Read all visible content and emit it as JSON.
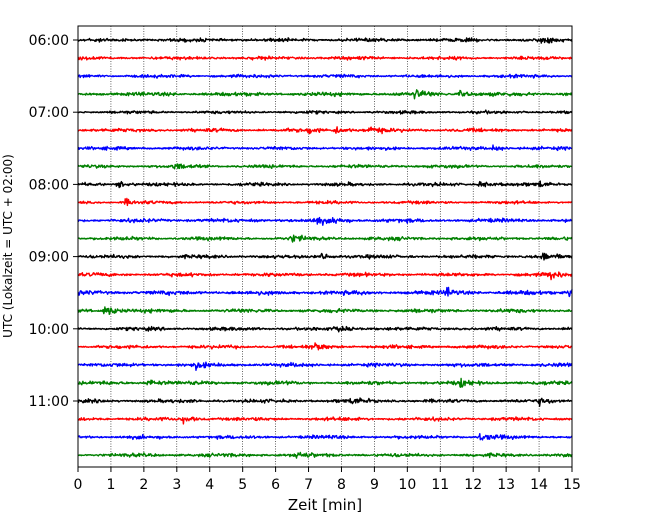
{
  "chart_data": {
    "type": "line",
    "subtype": "helicorder",
    "title": "",
    "xlabel": "Zeit  [min]",
    "ylabel": "UTC (Lokalzeit = UTC + 02:00)",
    "xlim": [
      0,
      15
    ],
    "x_ticks": [
      0,
      1,
      2,
      3,
      4,
      5,
      6,
      7,
      8,
      9,
      10,
      11,
      12,
      13,
      14,
      15
    ],
    "x_gridlines": "dotted vertical at each minute",
    "row_interval_minutes": 15,
    "row_start_time": "06:00",
    "y_tick_labels": [
      "06:00",
      "07:00",
      "08:00",
      "09:00",
      "10:00",
      "11:00"
    ],
    "y_tick_row_indices": [
      0,
      4,
      8,
      12,
      16,
      20
    ],
    "color_cycle": [
      "#000000",
      "#ff0000",
      "#0000ff",
      "#008000"
    ],
    "rows": [
      {
        "start": "06:00",
        "amplitude": 0.3,
        "events": [
          {
            "t": 14.0,
            "amp": 0.45
          }
        ]
      },
      {
        "start": "06:15",
        "amplitude": 0.28,
        "events": []
      },
      {
        "start": "06:30",
        "amplitude": 0.28,
        "events": []
      },
      {
        "start": "06:45",
        "amplitude": 0.33,
        "events": [
          {
            "t": 10.2,
            "amp": 0.7
          },
          {
            "t": 11.6,
            "amp": 0.5
          }
        ]
      },
      {
        "start": "07:00",
        "amplitude": 0.26,
        "events": []
      },
      {
        "start": "07:15",
        "amplitude": 0.3,
        "events": [
          {
            "t": 7.0,
            "amp": 0.5
          },
          {
            "t": 7.8,
            "amp": 0.6
          },
          {
            "t": 8.8,
            "amp": 0.55
          }
        ]
      },
      {
        "start": "07:30",
        "amplitude": 0.28,
        "events": [
          {
            "t": 12.6,
            "amp": 0.45
          }
        ]
      },
      {
        "start": "07:45",
        "amplitude": 0.28,
        "events": [
          {
            "t": 2.9,
            "amp": 0.4
          }
        ]
      },
      {
        "start": "08:00",
        "amplitude": 0.28,
        "events": [
          {
            "t": 1.2,
            "amp": 0.55
          },
          {
            "t": 12.2,
            "amp": 0.5
          },
          {
            "t": 14.0,
            "amp": 0.45
          }
        ]
      },
      {
        "start": "08:15",
        "amplitude": 0.26,
        "events": [
          {
            "t": 1.4,
            "amp": 0.5
          }
        ]
      },
      {
        "start": "08:30",
        "amplitude": 0.32,
        "events": [
          {
            "t": 7.2,
            "amp": 0.6
          },
          {
            "t": 7.8,
            "amp": 0.55
          }
        ]
      },
      {
        "start": "08:45",
        "amplitude": 0.3,
        "events": [
          {
            "t": 6.5,
            "amp": 0.5
          }
        ]
      },
      {
        "start": "09:00",
        "amplitude": 0.3,
        "events": [
          {
            "t": 7.4,
            "amp": 0.6
          },
          {
            "t": 14.1,
            "amp": 0.55
          }
        ]
      },
      {
        "start": "09:15",
        "amplitude": 0.3,
        "events": [
          {
            "t": 14.3,
            "amp": 0.8
          }
        ]
      },
      {
        "start": "09:30",
        "amplitude": 0.36,
        "events": [
          {
            "t": 11.2,
            "amp": 0.6
          },
          {
            "t": 14.9,
            "amp": 0.85
          }
        ]
      },
      {
        "start": "09:45",
        "amplitude": 0.32,
        "events": [
          {
            "t": 0.8,
            "amp": 1.1
          }
        ]
      },
      {
        "start": "10:00",
        "amplitude": 0.3,
        "events": [
          {
            "t": 7.9,
            "amp": 0.5
          }
        ]
      },
      {
        "start": "10:15",
        "amplitude": 0.3,
        "events": [
          {
            "t": 7.2,
            "amp": 0.5
          }
        ]
      },
      {
        "start": "10:30",
        "amplitude": 0.32,
        "events": [
          {
            "t": 3.5,
            "amp": 0.5
          }
        ]
      },
      {
        "start": "10:45",
        "amplitude": 0.32,
        "events": [
          {
            "t": 2.1,
            "amp": 0.6
          },
          {
            "t": 11.6,
            "amp": 0.55
          }
        ]
      },
      {
        "start": "11:00",
        "amplitude": 0.3,
        "events": [
          {
            "t": 8.3,
            "amp": 0.55
          },
          {
            "t": 14.0,
            "amp": 0.5
          }
        ]
      },
      {
        "start": "11:15",
        "amplitude": 0.3,
        "events": [
          {
            "t": 3.2,
            "amp": 0.55
          }
        ]
      },
      {
        "start": "11:30",
        "amplitude": 0.3,
        "events": [
          {
            "t": 12.2,
            "amp": 0.5
          }
        ]
      },
      {
        "start": "11:45",
        "amplitude": 0.3,
        "events": [
          {
            "t": 6.6,
            "amp": 0.55
          }
        ]
      }
    ]
  }
}
